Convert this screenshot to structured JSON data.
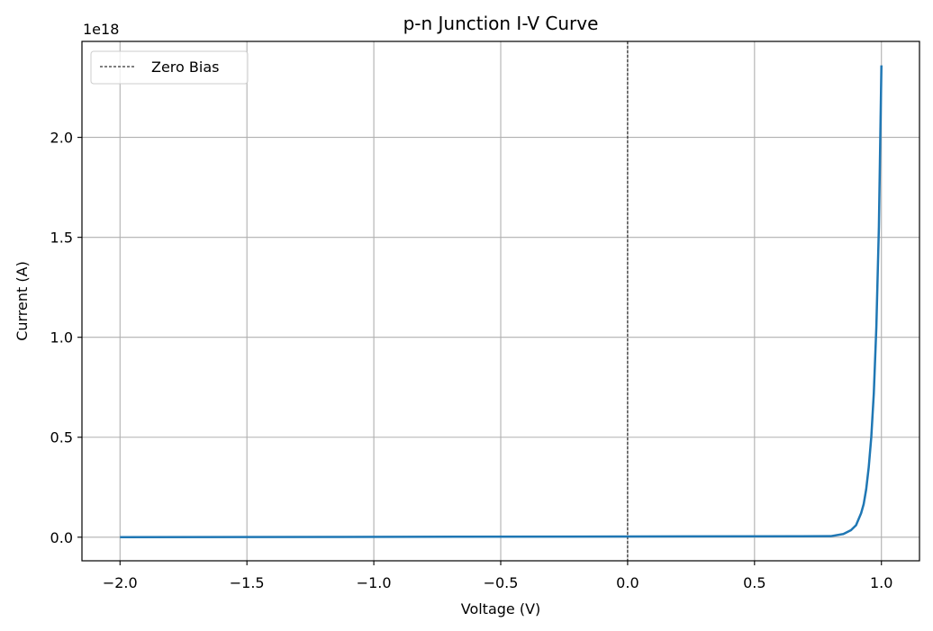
{
  "chart_data": {
    "type": "line",
    "title": "p-n Junction I-V Curve",
    "xlabel": "Voltage (V)",
    "ylabel": "Current (A)",
    "y_scale_label": "1e18",
    "xlim": [
      -2.15,
      1.15
    ],
    "ylim": [
      -0.118,
      2.48
    ],
    "x_ticks": [
      -2.0,
      -1.5,
      -1.0,
      -0.5,
      0.0,
      0.5,
      1.0
    ],
    "x_tick_labels": [
      "−2.0",
      "−1.5",
      "−1.0",
      "−0.5",
      "0.0",
      "0.5",
      "1.0"
    ],
    "y_ticks": [
      0.0,
      0.5,
      1.0,
      1.5,
      2.0
    ],
    "y_tick_labels": [
      "0.0",
      "0.5",
      "1.0",
      "1.5",
      "2.0"
    ],
    "grid": true,
    "legend_position": "top-left",
    "series": [
      {
        "color": "#1f77b4",
        "x": [
          -2.0,
          0.8,
          0.85,
          0.88,
          0.9,
          0.92,
          0.93,
          0.94,
          0.95,
          0.96,
          0.97,
          0.98,
          0.99,
          1.0
        ],
        "y": [
          0.0,
          0.005,
          0.016,
          0.035,
          0.06,
          0.12,
          0.165,
          0.24,
          0.35,
          0.5,
          0.72,
          1.05,
          1.55,
          2.36
        ]
      }
    ],
    "reference_lines": [
      {
        "name": "Zero Bias",
        "orientation": "vertical",
        "x": 0.0,
        "color": "#000000",
        "style": "dashed"
      }
    ]
  }
}
